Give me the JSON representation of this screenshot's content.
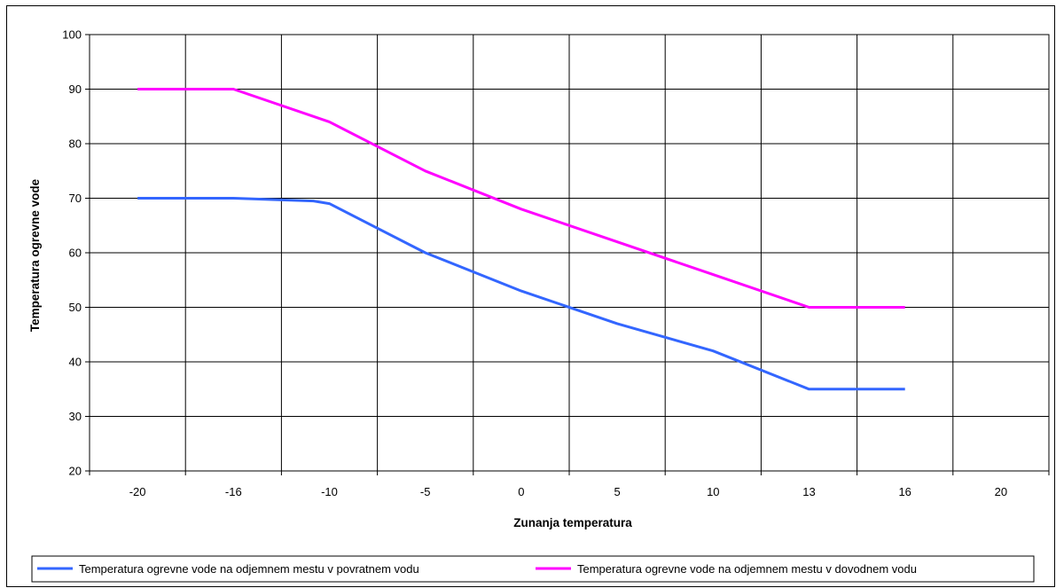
{
  "chart_data": {
    "type": "line",
    "xlabel": "Zunanja temperatura",
    "ylabel": "Temperatura ogrevne vode",
    "categories": [
      "-20",
      "-16",
      "-10",
      "-5",
      "0",
      "5",
      "10",
      "13",
      "16",
      "20"
    ],
    "ylim": [
      20,
      100
    ],
    "yticks": [
      20,
      30,
      40,
      50,
      60,
      70,
      80,
      90,
      100
    ],
    "grid": true,
    "legend_position": "bottom",
    "series": [
      {
        "name": "Temperatura ogrevne vode na odjemnem mestu v povratnem vodu",
        "color": "#3366ff",
        "x": [
          -20,
          -16,
          -11,
          -10,
          -5,
          0,
          5,
          10,
          13,
          16
        ],
        "values": [
          70,
          70,
          69.5,
          69,
          60,
          53,
          47,
          42,
          35,
          35
        ]
      },
      {
        "name": "Temperatura ogrevne vode na odjemnem mestu v dovodnem vodu",
        "color": "#ff00ff",
        "x": [
          -20,
          -16,
          -10,
          -5,
          0,
          5,
          10,
          13,
          16
        ],
        "values": [
          90,
          90,
          84,
          75,
          68,
          62,
          56,
          50,
          50
        ]
      }
    ]
  }
}
